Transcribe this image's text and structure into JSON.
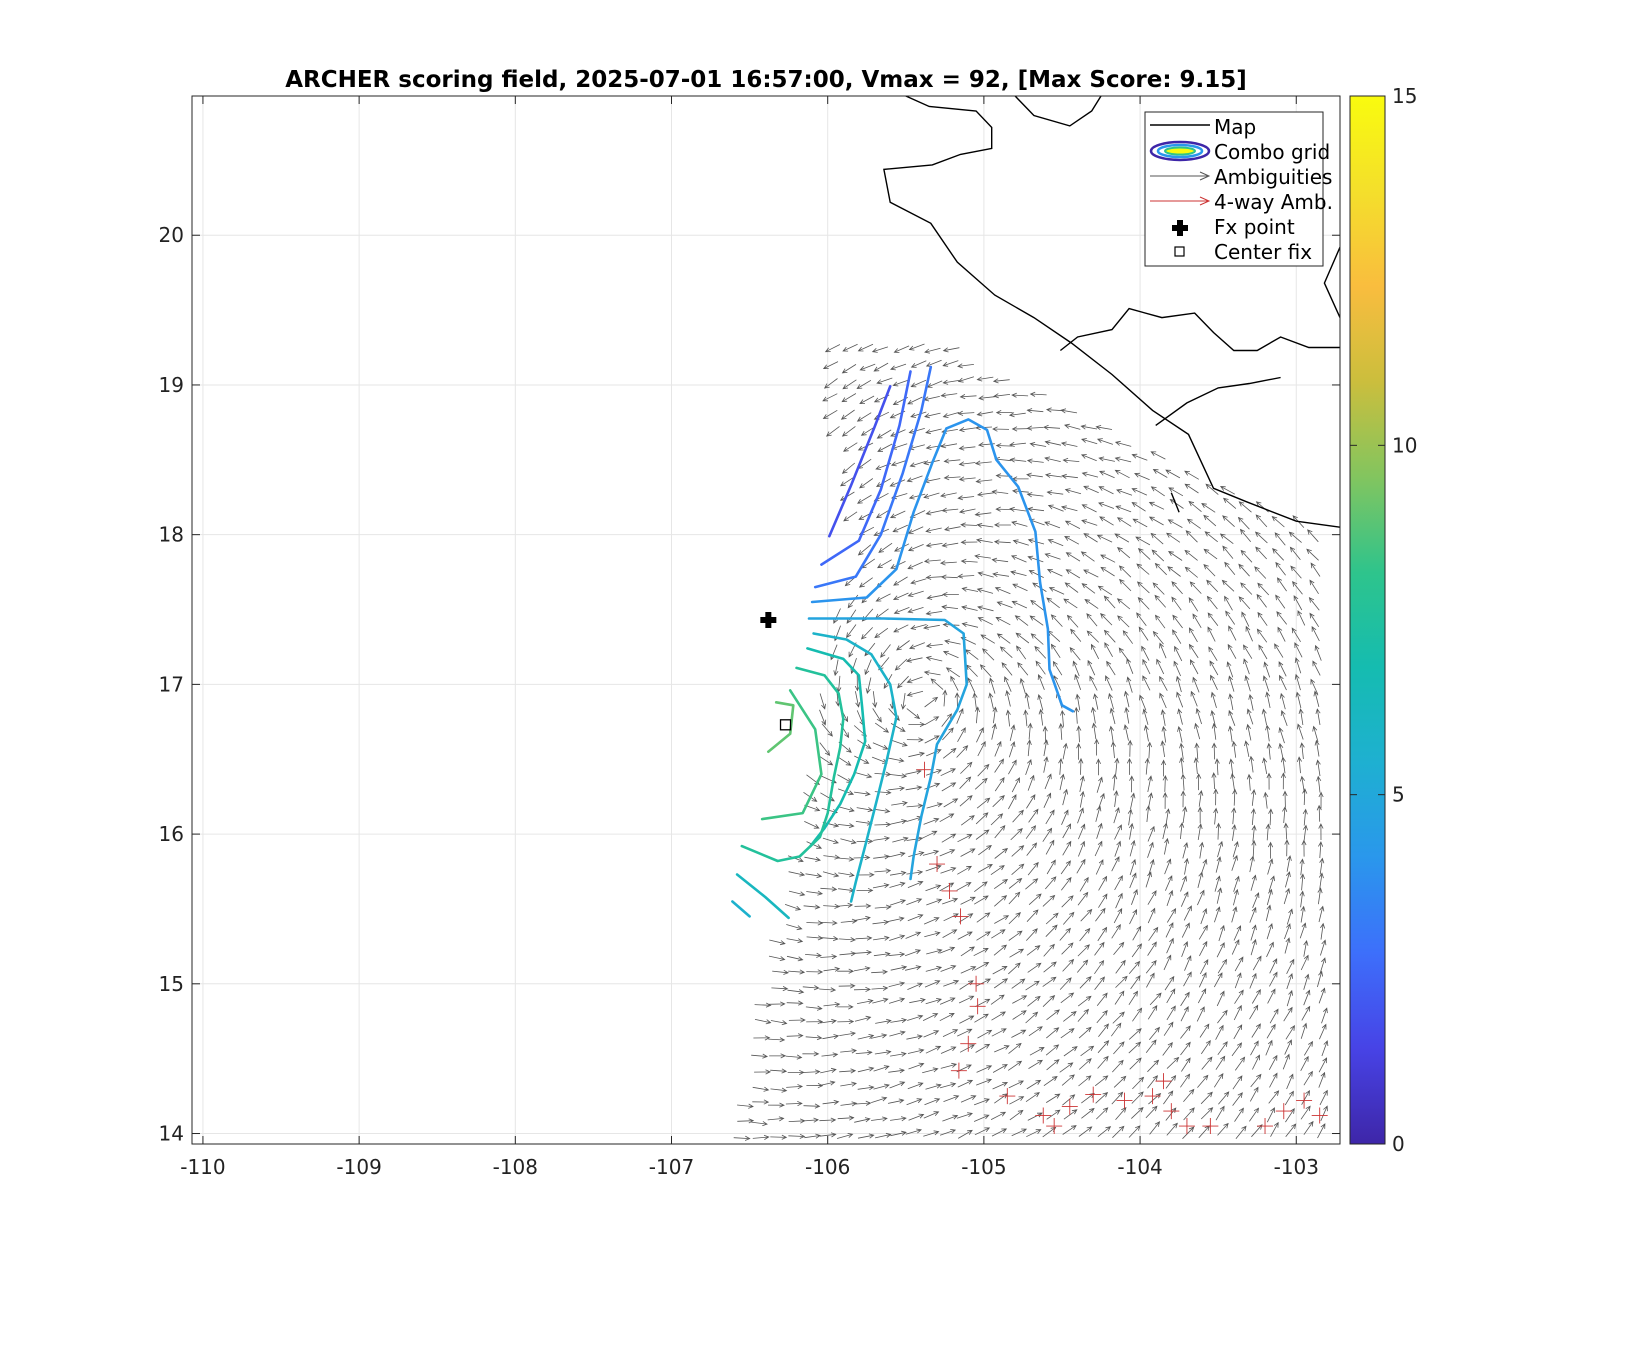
{
  "chart_data": {
    "type": "contour_vector_map",
    "title": "ARCHER scoring field, 2025-07-01 16:57:00, Vmax = 92, [Max Score: 9.15]",
    "xlabel": "",
    "ylabel": "",
    "xlim": [
      -110.07,
      -102.72
    ],
    "ylim": [
      13.93,
      20.93
    ],
    "xticks": [
      "-110",
      "-109",
      "-108",
      "-107",
      "-106",
      "-105",
      "-104",
      "-103"
    ],
    "yticks": [
      "14",
      "15",
      "16",
      "17",
      "18",
      "19",
      "20"
    ],
    "grid": true,
    "legend_position": "top-right",
    "legend": [
      {
        "label": "Map",
        "symbol": "line"
      },
      {
        "label": "Combo grid",
        "symbol": "contour-ellipse"
      },
      {
        "label": "Ambiguities",
        "symbol": "gray-arrow"
      },
      {
        "label": "4-way Amb.",
        "symbol": "red-arrow"
      },
      {
        "label": "Fx point",
        "symbol": "plus"
      },
      {
        "label": "Center fix",
        "symbol": "square"
      }
    ],
    "colorbar": {
      "min": 0,
      "max": 15,
      "ticks": [
        "0",
        "5",
        "10",
        "15"
      ],
      "colormap": [
        "#3e26a8",
        "#4743e6",
        "#3d6ffb",
        "#2a97ec",
        "#1eb0d1",
        "#15bcb0",
        "#2ec48c",
        "#82c55f",
        "#cbbe3d",
        "#f9bd3e",
        "#f4df2b",
        "#f9fb0e"
      ]
    },
    "fx_point": {
      "lon": -106.38,
      "lat": 17.43
    },
    "center_fix": {
      "lon": -106.27,
      "lat": 16.73
    },
    "coastline": [
      [
        [
          -104.8,
          20.93
        ],
        [
          -104.68,
          20.8
        ],
        [
          -104.45,
          20.73
        ],
        [
          -104.31,
          20.83
        ],
        [
          -104.25,
          20.93
        ]
      ],
      [
        [
          -105.5,
          20.93
        ],
        [
          -105.35,
          20.86
        ],
        [
          -105.05,
          20.83
        ],
        [
          -104.95,
          20.72
        ],
        [
          -104.95,
          20.58
        ],
        [
          -105.15,
          20.54
        ],
        [
          -105.33,
          20.47
        ],
        [
          -105.64,
          20.44
        ],
        [
          -105.6,
          20.22
        ],
        [
          -105.34,
          20.08
        ],
        [
          -105.17,
          19.82
        ],
        [
          -104.93,
          19.6
        ],
        [
          -104.68,
          19.45
        ],
        [
          -104.44,
          19.28
        ],
        [
          -104.18,
          19.07
        ],
        [
          -103.92,
          18.83
        ],
        [
          -103.69,
          18.67
        ],
        [
          -103.53,
          18.31
        ],
        [
          -103.32,
          18.22
        ],
        [
          -103.0,
          18.09
        ],
        [
          -102.72,
          18.05
        ]
      ],
      [
        [
          -104.51,
          19.23
        ],
        [
          -104.4,
          19.32
        ],
        [
          -104.18,
          19.37
        ],
        [
          -104.07,
          19.51
        ],
        [
          -103.86,
          19.45
        ],
        [
          -103.65,
          19.48
        ],
        [
          -103.53,
          19.35
        ],
        [
          -103.4,
          19.23
        ],
        [
          -103.25,
          19.23
        ],
        [
          -103.1,
          19.32
        ],
        [
          -102.92,
          19.25
        ],
        [
          -102.72,
          19.25
        ]
      ],
      [
        [
          -103.9,
          18.73
        ],
        [
          -103.7,
          18.88
        ],
        [
          -103.5,
          18.98
        ],
        [
          -103.3,
          19.01
        ],
        [
          -103.1,
          19.05
        ]
      ],
      [
        [
          -102.72,
          19.45
        ],
        [
          -102.82,
          19.68
        ],
        [
          -102.72,
          19.92
        ]
      ],
      [
        [
          -103.8,
          18.28
        ],
        [
          -103.75,
          18.15
        ]
      ]
    ],
    "contours": [
      {
        "level": 1.8,
        "points": [
          [
            -105.99,
            17.99
          ],
          [
            -105.85,
            18.33
          ],
          [
            -105.7,
            18.72
          ],
          [
            -105.6,
            18.99
          ]
        ]
      },
      {
        "level": 2.5,
        "points": [
          [
            -106.04,
            17.8
          ],
          [
            -105.8,
            17.96
          ],
          [
            -105.66,
            18.3
          ],
          [
            -105.54,
            18.73
          ],
          [
            -105.47,
            19.09
          ]
        ]
      },
      {
        "level": 3.0,
        "points": [
          [
            -106.08,
            17.65
          ],
          [
            -105.82,
            17.72
          ],
          [
            -105.66,
            18.0
          ],
          [
            -105.52,
            18.41
          ],
          [
            -105.4,
            18.83
          ],
          [
            -105.34,
            19.12
          ]
        ]
      },
      {
        "level": 4.0,
        "points": [
          [
            -106.1,
            17.55
          ],
          [
            -105.75,
            17.58
          ],
          [
            -105.56,
            17.77
          ],
          [
            -105.45,
            18.15
          ],
          [
            -105.33,
            18.48
          ],
          [
            -105.24,
            18.71
          ],
          [
            -105.1,
            18.77
          ],
          [
            -104.98,
            18.7
          ],
          [
            -104.92,
            18.5
          ],
          [
            -104.78,
            18.32
          ],
          [
            -104.67,
            18.02
          ],
          [
            -104.64,
            17.68
          ],
          [
            -104.59,
            17.37
          ],
          [
            -104.58,
            17.1
          ],
          [
            -104.5,
            16.86
          ],
          [
            -104.43,
            16.82
          ]
        ]
      },
      {
        "level": 4.8,
        "points": [
          [
            -106.12,
            17.44
          ],
          [
            -105.64,
            17.44
          ],
          [
            -105.25,
            17.43
          ],
          [
            -105.13,
            17.34
          ],
          [
            -105.11,
            17.0
          ],
          [
            -105.17,
            16.83
          ],
          [
            -105.3,
            16.6
          ],
          [
            -105.34,
            16.38
          ],
          [
            -105.4,
            16.12
          ],
          [
            -105.45,
            15.85
          ],
          [
            -105.47,
            15.7
          ]
        ]
      },
      {
        "level": 5.8,
        "points": [
          [
            -106.09,
            17.34
          ],
          [
            -105.88,
            17.3
          ],
          [
            -105.72,
            17.2
          ],
          [
            -105.6,
            17.0
          ],
          [
            -105.56,
            16.78
          ],
          [
            -105.62,
            16.5
          ],
          [
            -105.68,
            16.25
          ],
          [
            -105.75,
            15.96
          ],
          [
            -105.82,
            15.68
          ],
          [
            -105.85,
            15.55
          ]
        ]
      },
      {
        "level": 6.8,
        "points": [
          [
            -106.13,
            17.24
          ],
          [
            -105.9,
            17.17
          ],
          [
            -105.8,
            17.06
          ],
          [
            -105.78,
            16.85
          ],
          [
            -105.76,
            16.62
          ],
          [
            -105.83,
            16.4
          ],
          [
            -105.92,
            16.2
          ],
          [
            -106.02,
            16.04
          ],
          [
            -106.11,
            15.92
          ]
        ]
      },
      {
        "level": 7.6,
        "points": [
          [
            -106.2,
            17.11
          ],
          [
            -106.02,
            17.06
          ],
          [
            -105.93,
            16.94
          ],
          [
            -105.9,
            16.77
          ],
          [
            -105.92,
            16.58
          ],
          [
            -105.96,
            16.38
          ],
          [
            -106.0,
            16.14
          ],
          [
            -106.05,
            15.98
          ],
          [
            -106.18,
            15.85
          ],
          [
            -106.32,
            15.82
          ],
          [
            -106.55,
            15.92
          ]
        ]
      },
      {
        "level": 6.2,
        "points": [
          [
            -106.58,
            15.73
          ],
          [
            -106.4,
            15.58
          ],
          [
            -106.25,
            15.44
          ]
        ]
      },
      {
        "level": 5.6,
        "points": [
          [
            -106.61,
            15.55
          ],
          [
            -106.5,
            15.45
          ]
        ]
      },
      {
        "level": 8.4,
        "points": [
          [
            -106.42,
            16.1
          ],
          [
            -106.16,
            16.14
          ],
          [
            -106.04,
            16.4
          ],
          [
            -106.08,
            16.7
          ],
          [
            -106.24,
            16.96
          ]
        ]
      },
      {
        "level": 9.0,
        "points": [
          [
            -106.33,
            16.88
          ],
          [
            -106.22,
            16.86
          ],
          [
            -106.24,
            16.67
          ],
          [
            -106.38,
            16.55
          ]
        ]
      }
    ]
  },
  "colors": {
    "map_line": "#000000",
    "ambiguity": "#555555",
    "four_way": "#cc3333",
    "grid": "#e6e6e6"
  }
}
